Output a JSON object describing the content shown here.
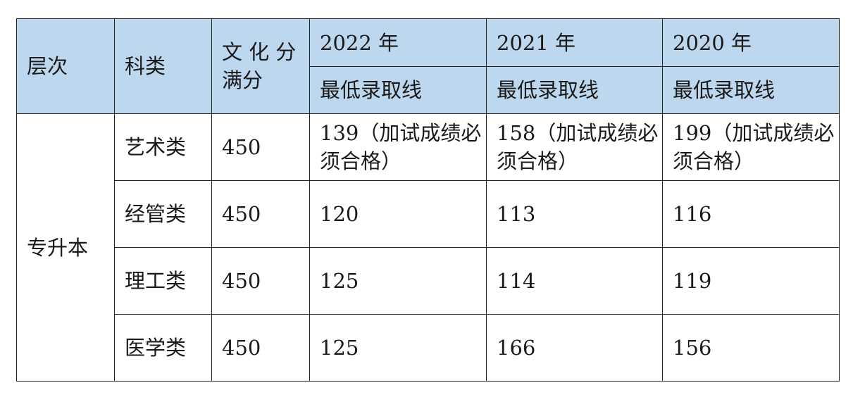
{
  "table": {
    "header": {
      "level": "层次",
      "category": "科类",
      "full_score": "文 化 分满分",
      "years": [
        "2022 年",
        "2021 年",
        "2020 年"
      ],
      "sub_label": "最低录取线"
    },
    "level_value": "专升本",
    "rows": [
      {
        "category": "艺术类",
        "full_score": "450",
        "scores": [
          "139（加试成绩必须合格）",
          "158（加试成绩必须合格）",
          "199（加试成绩必须合格）"
        ]
      },
      {
        "category": "经管类",
        "full_score": "450",
        "scores": [
          "120",
          "113",
          "116"
        ]
      },
      {
        "category": "理工类",
        "full_score": "450",
        "scores": [
          "125",
          "114",
          "119"
        ]
      },
      {
        "category": "医学类",
        "full_score": "450",
        "scores": [
          "125",
          "166",
          "156"
        ]
      }
    ],
    "colors": {
      "header_bg": "#bdd7ee",
      "border": "#222222"
    }
  }
}
